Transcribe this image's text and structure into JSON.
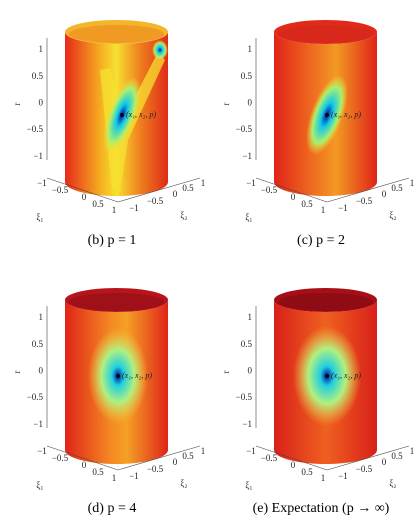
{
  "panels": [
    {
      "caption": "(b) p = 1",
      "point_label": "(x₁, x₂, p)",
      "r_label": "r",
      "r_ticks": [
        "1",
        "0.5",
        "0",
        "−0.5",
        "−1"
      ],
      "xi1_label": "ξ₁",
      "xi1_ticks": [
        "−1",
        "−0.5",
        "0",
        "0.5",
        "1"
      ],
      "xi2_label": "ξ₂",
      "xi2_ticks": [
        "−1",
        "−0.5",
        "0",
        "0.5",
        "1"
      ]
    },
    {
      "caption": "(c) p = 2",
      "point_label": "(x₁, x₂, p)",
      "r_label": "r",
      "r_ticks": [
        "1",
        "0.5",
        "0",
        "−0.5",
        "−1"
      ],
      "xi1_label": "ξ₁",
      "xi1_ticks": [
        "−1",
        "−0.5",
        "0",
        "0.5",
        "1"
      ],
      "xi2_label": "ξ₂",
      "xi2_ticks": [
        "−1",
        "−0.5",
        "0",
        "0.5",
        "1"
      ]
    },
    {
      "caption": "(d) p = 4",
      "point_label": "(x₁, x₂, p)",
      "r_label": "r",
      "r_ticks": [
        "1",
        "0.5",
        "0",
        "−0.5",
        "−1"
      ],
      "xi1_label": "ξ₁",
      "xi1_ticks": [
        "−1",
        "−0.5",
        "0",
        "0.5",
        "1"
      ],
      "xi2_label": "ξ₂",
      "xi2_ticks": [
        "−1",
        "−0.5",
        "0",
        "0.5",
        "1"
      ]
    },
    {
      "caption": "(e) Expectation (p → ∞)",
      "point_label": "(x₁, x₂, p)",
      "r_label": "r",
      "r_ticks": [
        "1",
        "0.5",
        "0",
        "−0.5",
        "−1"
      ],
      "xi1_label": "ξ₁",
      "xi1_ticks": [
        "−1",
        "−0.5",
        "0",
        "0.5",
        "1"
      ],
      "xi2_label": "ξ₂",
      "xi2_ticks": [
        "−1",
        "−0.5",
        "0",
        "0.5",
        "1"
      ]
    }
  ]
}
